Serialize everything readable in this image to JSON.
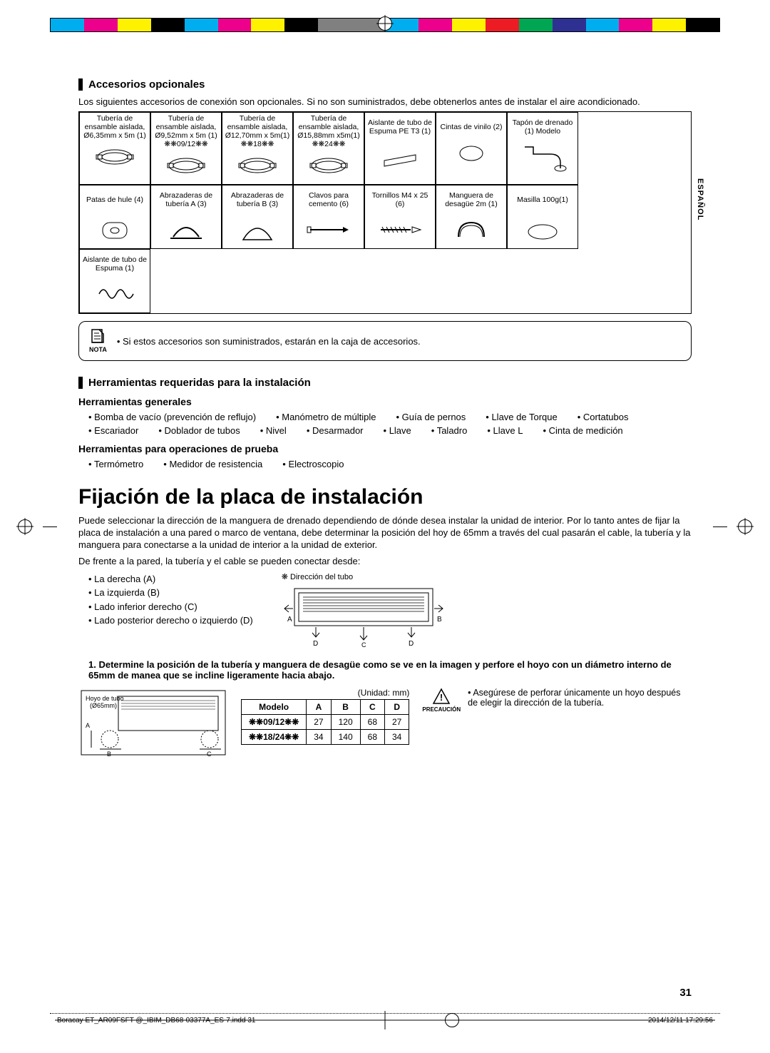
{
  "reg_colors": [
    "#00aeef",
    "#ec008c",
    "#fff200",
    "#000000",
    "#00aeef",
    "#ec008c",
    "#fff200",
    "#000000",
    "#808080",
    "#808080",
    "#00aeef",
    "#ec008c",
    "#fff200",
    "#ed1c24",
    "#00a651",
    "#2e3192",
    "#00aeef",
    "#ec008c",
    "#fff200",
    "#000000"
  ],
  "lang_tab": "ESPAÑOL",
  "page_num": "31",
  "footer_file": "Boracay ET_AR09FSFT @_IBIM_DB68-03377A_ES-7.indd   31",
  "footer_date": "2014/12/11   17:29:56",
  "s1_title": "Accesorios opcionales",
  "s1_intro": "Los siguientes accesorios de conexión son opcionales. Si no son suministrados, debe obtenerlos antes de instalar el aire acondicionado.",
  "acc": {
    "row1": [
      "Tubería de ensamble aislada, Ø6,35mm x 5m (1)",
      "Tubería de ensamble aislada, Ø9,52mm x 5m (1) ❋❋09/12❋❋",
      "Tubería de ensamble aislada, Ø12,70mm x 5m(1) ❋❋18❋❋",
      "Tubería de ensamble aislada, Ø15,88mm x5m(1) ❋❋24❋❋",
      "Aislante de tubo de Espuma PE T3 (1)",
      "Cintas de vinilo (2)",
      "Tapón de drenado (1) Modelo"
    ],
    "row2": [
      "Patas de hule (4)",
      "Abrazaderas de tubería A (3)",
      "Abrazaderas de tubería B (3)",
      "Clavos para cemento (6)",
      "Tornillos M4 x 25 (6)",
      "Manguera de desagüe 2m (1)",
      "Masilla 100g(1)"
    ],
    "row3": [
      "Aislante de tubo de Espuma (1)"
    ]
  },
  "note_label": "NOTA",
  "note_text": "Si estos accesorios son suministrados, estarán en la caja de accesorios.",
  "s2_title": "Herramientas requeridas para la instalación",
  "tools_general_h": "Herramientas generales",
  "tools_general": [
    "Bomba de vacío (prevención de reflujo)",
    "Manómetro de múltiple",
    "Guía de pernos",
    "Llave de Torque",
    "Cortatubos",
    "Escariador",
    "Doblador de tubos",
    "Nivel",
    "Desarmador",
    "Llave",
    "Taladro",
    "Llave L",
    "Cinta de medición"
  ],
  "tools_test_h": "Herramientas para operaciones de prueba",
  "tools_test": [
    "Termómetro",
    "Medidor de resistencia",
    "Electroscopio"
  ],
  "big_title": "Fijación de la placa de instalación",
  "p1": "Puede seleccionar la dirección de la manguera de drenado dependiendo de dónde desea instalar la unidad de interior. Por lo tanto antes de fijar la placa de instalación a una pared o marco de ventana, debe determinar la posición del hoy de 65mm a través del cual pasarán el cable, la tubería y la manguera para conectarse a la unidad de interior a la unidad de exterior.",
  "p2": "De frente a la pared, la tubería y el cable se pueden conectar desde:",
  "dirs": [
    "La derecha (A)",
    "La izquierda (B)",
    "Lado inferior derecho (C)",
    "Lado posterior derecho o izquierdo (D)"
  ],
  "dir_diagram_label": "❋ Dirección del tubo",
  "dir_letters": {
    "A": "A",
    "B": "B",
    "C": "C",
    "D": "D"
  },
  "step1": "1.   Determine la posición de la tubería y manguera de desagüe como se ve en la imagen y perfore el hoyo con un diámetro interno de 65mm de manea que se incline ligeramente hacia abajo.",
  "hole_diagram_label": "Hoyo de tubo (Ø65mm)",
  "dim_unit": "(Unidad: mm)",
  "dim_headers": [
    "Modelo",
    "A",
    "B",
    "C",
    "D"
  ],
  "dim_rows": [
    [
      "❋❋09/12❋❋",
      "27",
      "120",
      "68",
      "27"
    ],
    [
      "❋❋18/24❋❋",
      "34",
      "140",
      "68",
      "34"
    ]
  ],
  "caution_label": "PRECAUCIÓN",
  "caution_text": "Asegúrese de perforar únicamente un hoyo después de elegir la dirección de la tubería."
}
